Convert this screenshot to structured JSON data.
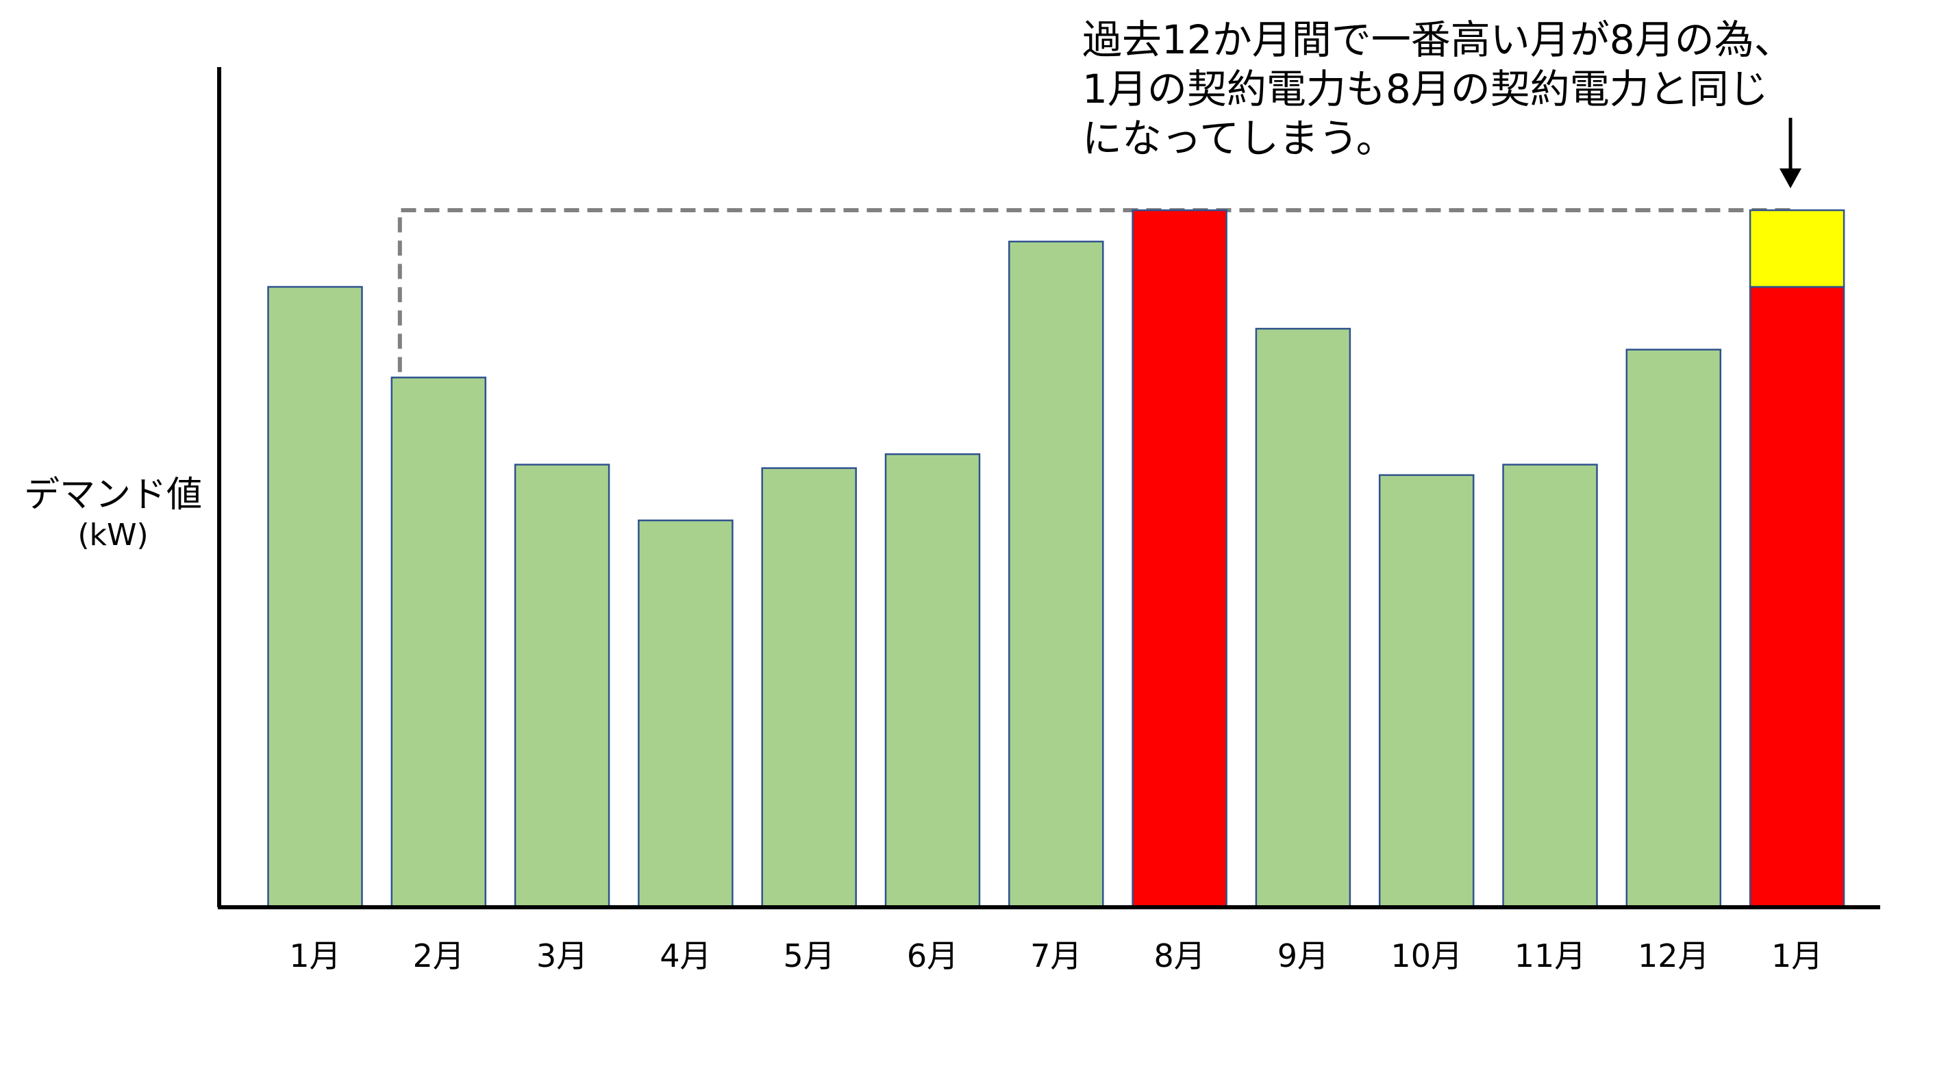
{
  "annotation": {
    "lines": [
      "過去12か月間で一番高い月が8月の為、",
      "1月の契約電力も8月の契約電力と同じ",
      "になってしまう。"
    ]
  },
  "chart_data": {
    "type": "bar",
    "title": "",
    "ylabel": "デマンド値",
    "ylabel_unit": "(kW)",
    "xlabel": "",
    "categories": [
      "1月",
      "2月",
      "3月",
      "4月",
      "5月",
      "6月",
      "7月",
      "8月",
      "9月",
      "10月",
      "11月",
      "12月",
      "1月"
    ],
    "values": [
      89,
      76,
      63.5,
      55.5,
      63,
      65,
      95.5,
      100,
      83,
      62,
      63.5,
      80,
      100
    ],
    "stacked_last": {
      "base": 89,
      "excess": 11
    },
    "ylim": [
      0,
      100
    ],
    "grid": false,
    "legend": "none",
    "reference_line": {
      "value": 100,
      "style": "dashed",
      "from_category": 1,
      "to_category": 12
    },
    "colors": {
      "normal": "#a9d18e",
      "peak": "#ff0000",
      "excess": "#ffff00",
      "bar_border": "#2f528f",
      "reference_line": "#808080",
      "axis": "#000000"
    },
    "highlight": {
      "peak_index": 7,
      "last_index": 12
    }
  }
}
